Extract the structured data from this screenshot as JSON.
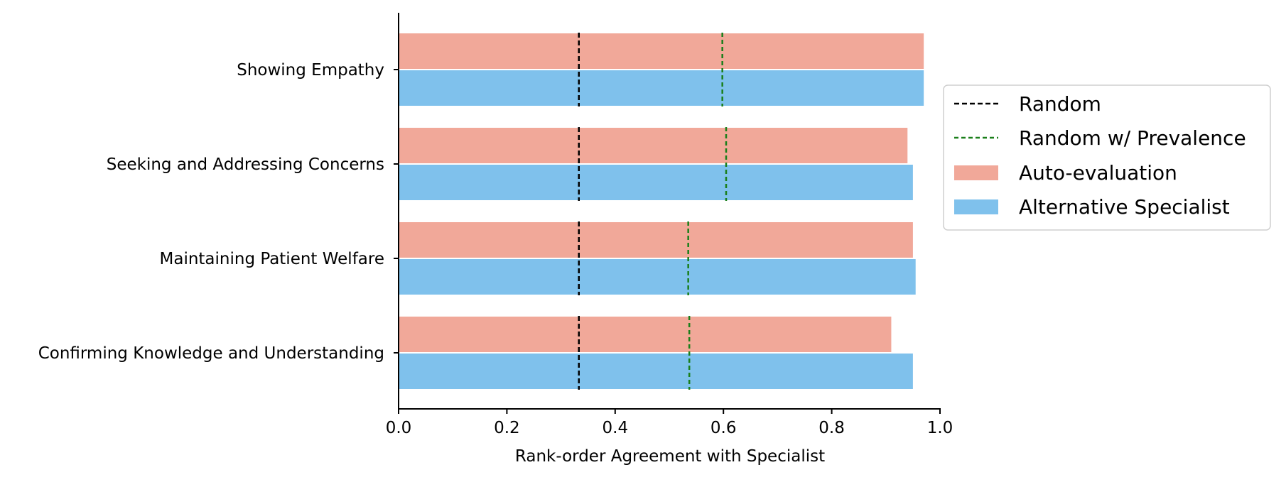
{
  "chart_data": {
    "type": "bar",
    "orientation": "horizontal",
    "categories": [
      "Showing Empathy",
      "Seeking and Addressing Concerns",
      "Maintaining Patient Welfare",
      "Confirming Knowledge and Understanding"
    ],
    "series": [
      {
        "name": "Auto-evaluation",
        "color": "#f1a899",
        "values": [
          0.97,
          0.94,
          0.95,
          0.91
        ]
      },
      {
        "name": "Alternative Specialist",
        "color": "#7fc1ec",
        "values": [
          0.97,
          0.95,
          0.955,
          0.95
        ]
      }
    ],
    "reference_lines": [
      {
        "name": "Random",
        "color": "#000000",
        "style": "dashed",
        "values": [
          0.333,
          0.333,
          0.333,
          0.333
        ]
      },
      {
        "name": "Random w/ Prevalence",
        "color": "#1a7f1a",
        "style": "dashed",
        "values": [
          0.598,
          0.605,
          0.535,
          0.537
        ]
      }
    ],
    "xlabel": "Rank-order Agreement with Specialist",
    "ylabel": "",
    "xlim": [
      0.0,
      1.0
    ],
    "xticks": [
      "0.0",
      "0.2",
      "0.4",
      "0.6",
      "0.8",
      "1.0"
    ],
    "grid": false,
    "legend_position": "right",
    "legend": [
      "Random",
      "Random w/ Prevalence",
      "Auto-evaluation",
      "Alternative Specialist"
    ]
  }
}
